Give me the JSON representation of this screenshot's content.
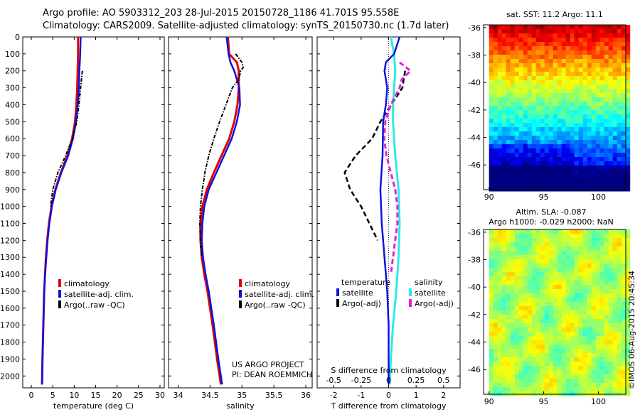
{
  "header": {
    "line1": "Argo profile: AO 5903312_203 28-Jul-2015 20150728_1186 41.701S 95.558E",
    "line2": "Climatology: CARS2009. Satellite-adjusted climatology: synTS_20150730.nc (1.7d later)"
  },
  "credit": {
    "project": "US ARGO PROJECT",
    "pi": "PI: DEAN ROEMMICH",
    "timestamp": "©IMOS 06-Aug-2015 20:45:34"
  },
  "colors": {
    "climatology": "#e00000",
    "satellite": "#1010e0",
    "argo": "#000000",
    "sal_satellite": "#30e8e8",
    "sal_argo": "#e020e0"
  },
  "chart_data": [
    {
      "type": "line",
      "xlabel": "temperature (deg C)",
      "ylabel": "",
      "xlim": [
        -2,
        31
      ],
      "ylim": [
        2070,
        0
      ],
      "x_ticks": [
        "0",
        "5",
        "10",
        "15",
        "20",
        "25",
        "30"
      ],
      "y_ticks": [
        "0",
        "100",
        "200",
        "300",
        "400",
        "500",
        "600",
        "700",
        "800",
        "900",
        "1000",
        "1100",
        "1200",
        "1300",
        "1400",
        "1500",
        "1600",
        "1700",
        "1800",
        "1900",
        "2000"
      ],
      "legend": [
        "climatology",
        "satellite-adj. clim.",
        "Argo(..raw -QC)"
      ],
      "legend_position": "lower-right",
      "series": [
        {
          "name": "climatology",
          "depth": [
            0,
            100,
            200,
            300,
            400,
            500,
            600,
            700,
            800,
            900,
            1000,
            1100,
            1200,
            1300,
            1400,
            1500,
            1700,
            1900,
            2050
          ],
          "values": [
            10.9,
            10.9,
            10.8,
            10.7,
            10.5,
            10.2,
            9.5,
            8.4,
            6.9,
            5.6,
            4.7,
            4.1,
            3.7,
            3.4,
            3.2,
            3.0,
            2.8,
            2.6,
            2.5
          ]
        },
        {
          "name": "satellite-adj. clim.",
          "depth": [
            0,
            100,
            200,
            300,
            400,
            500,
            600,
            700,
            800,
            900,
            1000,
            1100,
            1200,
            1300,
            1400,
            1500,
            1700,
            1900,
            2050
          ],
          "values": [
            11.5,
            11.4,
            11.2,
            11.1,
            10.8,
            10.4,
            9.7,
            8.6,
            7.0,
            5.7,
            4.8,
            4.2,
            3.8,
            3.5,
            3.2,
            3.0,
            2.8,
            2.6,
            2.5
          ]
        },
        {
          "name": "Argo(..raw -QC)",
          "depth": [
            200,
            300,
            400,
            500,
            600,
            700,
            800,
            900,
            1000
          ],
          "values": [
            11.9,
            11.5,
            11.1,
            10.6,
            9.6,
            8.0,
            6.2,
            5.0,
            4.5
          ]
        }
      ]
    },
    {
      "type": "line",
      "xlabel": "salinity",
      "ylabel": "",
      "xlim": [
        33.85,
        36.1
      ],
      "ylim": [
        2070,
        0
      ],
      "x_ticks": [
        "34",
        "34.5",
        "35",
        "35.5",
        "36"
      ],
      "legend": [
        "climatology",
        "satellite-adj. clim.",
        "Argo(..raw -QC)"
      ],
      "legend_position": "lower-right",
      "series": [
        {
          "name": "climatology",
          "depth": [
            0,
            100,
            150,
            200,
            300,
            400,
            500,
            600,
            700,
            800,
            900,
            1000,
            1100,
            1200,
            1300,
            1400,
            1500,
            1700,
            1900,
            2050
          ],
          "values": [
            34.78,
            34.8,
            34.92,
            34.95,
            34.95,
            34.93,
            34.88,
            34.8,
            34.68,
            34.56,
            34.45,
            34.38,
            34.35,
            34.35,
            34.37,
            34.41,
            34.46,
            34.54,
            34.61,
            34.67
          ]
        },
        {
          "name": "satellite-adj. clim.",
          "depth": [
            0,
            100,
            150,
            200,
            300,
            400,
            500,
            600,
            700,
            800,
            900,
            1000,
            1100,
            1200,
            1300,
            1400,
            1500,
            1700,
            1900,
            2050
          ],
          "values": [
            34.76,
            34.79,
            34.82,
            34.88,
            34.96,
            34.97,
            34.92,
            34.84,
            34.72,
            34.6,
            34.48,
            34.41,
            34.38,
            34.37,
            34.39,
            34.43,
            34.48,
            34.56,
            34.63,
            34.69
          ]
        },
        {
          "name": "Argo(..raw -QC)",
          "depth": [
            100,
            150,
            180,
            200,
            250,
            300,
            400,
            500,
            600,
            700,
            800,
            900,
            1000,
            1100,
            1200,
            1300
          ],
          "values": [
            34.9,
            35.0,
            35.02,
            34.98,
            34.95,
            34.85,
            34.75,
            34.65,
            34.56,
            34.48,
            34.42,
            34.38,
            34.35,
            34.34,
            34.35,
            34.37
          ]
        }
      ]
    },
    {
      "type": "line",
      "xlabel": "T difference from climatology",
      "top_axis_label": "S difference from climatology",
      "xlim": [
        -2.6,
        2.6
      ],
      "ylim": [
        2070,
        0
      ],
      "x_ticks": [
        "-2",
        "-1",
        "0",
        "1",
        "2"
      ],
      "top_ticks": [
        "-0.5",
        "-0.25",
        "0",
        "0.25",
        "0.5"
      ],
      "legend_left": {
        "title": "temperature",
        "items": [
          "satellite",
          "Argo(-adj)"
        ]
      },
      "legend_right": {
        "title": "salinity",
        "items": [
          "satellite",
          "Argo(-adj)"
        ]
      },
      "series": [
        {
          "name": "temperature satellite",
          "depth": [
            0,
            100,
            150,
            200,
            300,
            400,
            500,
            700,
            900,
            1100,
            1300,
            1500,
            1700,
            1900,
            2050
          ],
          "values": [
            0.4,
            0.2,
            -0.1,
            -0.15,
            -0.05,
            -0.1,
            -0.2,
            -0.22,
            -0.3,
            -0.25,
            -0.15,
            -0.05,
            0,
            0,
            0
          ]
        },
        {
          "name": "temperature Argo(-adj)",
          "depth": [
            200,
            300,
            400,
            500,
            600,
            700,
            800,
            900,
            1000,
            1100,
            1200
          ],
          "values": [
            0.6,
            0.5,
            0.1,
            -0.3,
            -0.6,
            -1.2,
            -1.6,
            -1.4,
            -1.0,
            -0.7,
            -0.4
          ]
        },
        {
          "name": "salinity satellite",
          "depth": [
            0,
            100,
            200,
            300,
            400,
            500,
            700,
            900,
            1100,
            1300,
            1500,
            1700,
            1900,
            2050
          ],
          "values": [
            0.02,
            0.05,
            0.06,
            0.05,
            0.04,
            0.04,
            0.06,
            0.09,
            0.1,
            0.09,
            0.07,
            0.04,
            0.02,
            0.01
          ]
        },
        {
          "name": "salinity Argo(-adj)",
          "depth": [
            150,
            200,
            250,
            300,
            400,
            500,
            600,
            700,
            800,
            900,
            1000,
            1100,
            1200,
            1300,
            1400
          ],
          "values": [
            0.1,
            0.2,
            0.12,
            0.1,
            0.02,
            -0.03,
            -0.04,
            -0.02,
            0.02,
            0.06,
            0.08,
            0.08,
            0.06,
            0.04,
            0.02
          ]
        }
      ]
    },
    {
      "type": "heatmap",
      "title": "sat. SST: 11.2  Argo: 11.1",
      "xlim": [
        89.5,
        102.5
      ],
      "ylim": [
        -47.8,
        -35.8
      ],
      "x_ticks": [
        "90",
        "95",
        "100"
      ],
      "y_ticks": [
        "-36",
        "-38",
        "-40",
        "-42",
        "-44",
        "-46"
      ],
      "marker": {
        "lon": 95.558,
        "lat": -41.701
      }
    },
    {
      "type": "heatmap",
      "title_line1": "Altim. SLA: -0.087",
      "title_line2": "Argo h1000: -0.029 h2000: NaN",
      "xlim": [
        89.5,
        102.5
      ],
      "ylim": [
        -47.8,
        -35.8
      ],
      "x_ticks": [
        "90",
        "95",
        "100"
      ],
      "y_ticks": [
        "-36",
        "-38",
        "-40",
        "-42",
        "-44",
        "-46"
      ]
    }
  ]
}
